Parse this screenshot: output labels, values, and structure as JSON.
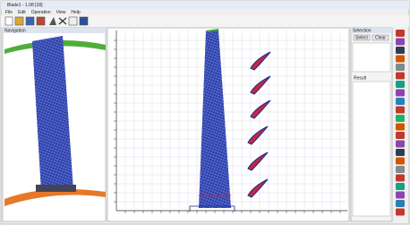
{
  "window": {
    "title": "Blade1 - 1.08 [18]",
    "menu": [
      "File",
      "Edit",
      "Operation",
      "View",
      "Help"
    ]
  },
  "left_panel": {
    "header": "Navigation"
  },
  "right_panel": {
    "header": "Selection",
    "buttons": [
      "Select",
      "Clear"
    ],
    "result_label": "Result"
  }
}
